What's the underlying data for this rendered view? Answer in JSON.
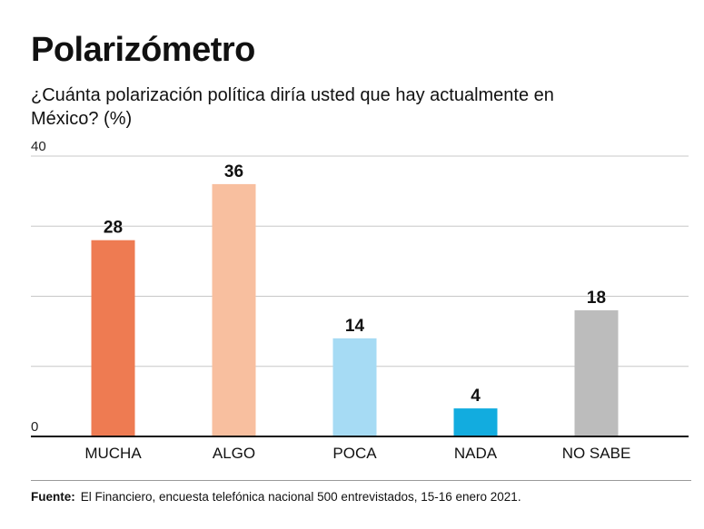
{
  "title": "Polarizómetro",
  "subtitle": "¿Cuánta polarización política diría usted que hay actualmente en México? (%)",
  "source_label": "Fuente:",
  "source_text": "El Financiero, encuesta telefónica nacional 500 entrevistados, 15-16 enero 2021.",
  "chart_data": {
    "type": "bar",
    "categories": [
      "MUCHA",
      "ALGO",
      "POCA",
      "NADA",
      "NO SABE"
    ],
    "values": [
      28,
      36,
      14,
      4,
      18
    ],
    "colors": [
      "#ee7b52",
      "#f8bf9f",
      "#a6dbf4",
      "#12acdf",
      "#bcbcbc"
    ],
    "ylim": [
      0,
      40
    ],
    "yticks": [
      0,
      10,
      20,
      30,
      40
    ],
    "ytick_labels": [
      "0",
      "",
      "",
      "",
      "40"
    ],
    "grid": true,
    "data_labels": true
  }
}
